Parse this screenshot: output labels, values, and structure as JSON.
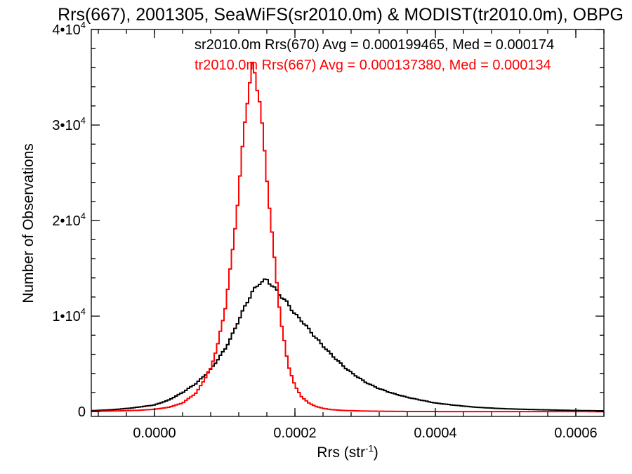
{
  "chart_data": {
    "type": "histogram-step",
    "title": "Rrs(667), 2001305, SeaWiFS(sr2010.0m) & MODIST(tr2010.0m), OBPG",
    "xlabel": "Rrs (str",
    "xlabel_exp": "-1",
    "xlabel_tail": ")",
    "ylabel": "Number of Observations",
    "xlim": [
      -9e-05,
      0.00064
    ],
    "ylim": [
      -500,
      40000
    ],
    "x_ticks": [
      {
        "value": 0.0,
        "label": "0.0000"
      },
      {
        "value": 0.0002,
        "label": "0.0002"
      },
      {
        "value": 0.0004,
        "label": "0.0004"
      },
      {
        "value": 0.0006,
        "label": "0.0006"
      }
    ],
    "y_ticks": [
      {
        "value": 0,
        "label": "0",
        "exp": ""
      },
      {
        "value": 10000,
        "label": "1•10",
        "exp": "4"
      },
      {
        "value": 20000,
        "label": "2•10",
        "exp": "4"
      },
      {
        "value": 30000,
        "label": "3•10",
        "exp": "4"
      },
      {
        "value": 40000,
        "label": "4•10",
        "exp": "4"
      }
    ],
    "series": [
      {
        "name": "sr2010.0m Rrs(670) Avg = 0.000199465, Med = 0.000174",
        "color": "#000000",
        "points": [
          [
            -9e-05,
            100
          ],
          [
            -6e-05,
            200
          ],
          [
            -3e-05,
            400
          ],
          [
            0.0,
            700
          ],
          [
            2e-05,
            1200
          ],
          [
            4e-05,
            2000
          ],
          [
            6e-05,
            3000
          ],
          [
            8e-05,
            4400
          ],
          [
            0.0001,
            6500
          ],
          [
            0.00011,
            7900
          ],
          [
            0.00012,
            9600
          ],
          [
            0.00013,
            11200
          ],
          [
            0.00014,
            12600
          ],
          [
            0.00015,
            13500
          ],
          [
            0.00016,
            13800
          ],
          [
            0.00017,
            13000
          ],
          [
            0.00018,
            12100
          ],
          [
            0.00019,
            11300
          ],
          [
            0.0002,
            10200
          ],
          [
            0.00021,
            9500
          ],
          [
            0.00022,
            8600
          ],
          [
            0.00023,
            7700
          ],
          [
            0.00024,
            6900
          ],
          [
            0.00025,
            6100
          ],
          [
            0.00026,
            5400
          ],
          [
            0.00027,
            4700
          ],
          [
            0.00028,
            4100
          ],
          [
            0.00029,
            3600
          ],
          [
            0.0003,
            3100
          ],
          [
            0.00032,
            2400
          ],
          [
            0.00034,
            1900
          ],
          [
            0.00036,
            1500
          ],
          [
            0.00038,
            1200
          ],
          [
            0.0004,
            900
          ],
          [
            0.00043,
            650
          ],
          [
            0.00046,
            450
          ],
          [
            0.0005,
            300
          ],
          [
            0.00055,
            200
          ],
          [
            0.0006,
            120
          ],
          [
            0.00064,
            80
          ]
        ]
      },
      {
        "name": "tr2010.0m Rrs(667) Avg = 0.000137380, Med = 0.000134",
        "color": "#ff0000",
        "points": [
          [
            -9e-05,
            30
          ],
          [
            -5e-05,
            80
          ],
          [
            -2e-05,
            150
          ],
          [
            0.0,
            250
          ],
          [
            2e-05,
            450
          ],
          [
            4e-05,
            900
          ],
          [
            6e-05,
            2000
          ],
          [
            8e-05,
            4500
          ],
          [
            9e-05,
            7000
          ],
          [
            0.0001,
            10500
          ],
          [
            0.00011,
            16000
          ],
          [
            0.00012,
            23000
          ],
          [
            0.00013,
            31500
          ],
          [
            0.00014,
            36500
          ],
          [
            0.00015,
            32500
          ],
          [
            0.00016,
            24500
          ],
          [
            0.00017,
            16500
          ],
          [
            0.00018,
            9500
          ],
          [
            0.00019,
            5000
          ],
          [
            0.0002,
            2700
          ],
          [
            0.00021,
            1500
          ],
          [
            0.00022,
            900
          ],
          [
            0.00023,
            550
          ],
          [
            0.00024,
            350
          ],
          [
            0.00025,
            220
          ],
          [
            0.00027,
            120
          ],
          [
            0.0003,
            60
          ],
          [
            0.00035,
            20
          ],
          [
            0.0004,
            10
          ],
          [
            0.00064,
            0
          ]
        ]
      }
    ]
  }
}
